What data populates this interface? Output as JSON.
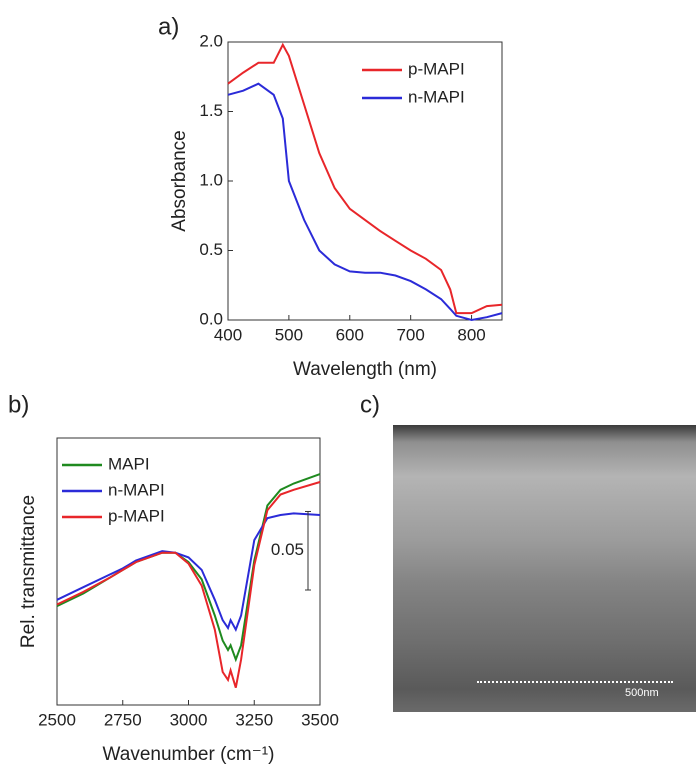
{
  "chart_data": [
    {
      "type": "line",
      "xlabel": "Wavelength (nm)",
      "ylabel": "Absorbance",
      "x": [
        400,
        425,
        450,
        475,
        490,
        500,
        525,
        550,
        575,
        600,
        625,
        650,
        675,
        700,
        725,
        750,
        765,
        775,
        800,
        825,
        850
      ],
      "series": [
        {
          "name": "p-MAPI",
          "color": "#e8262a",
          "values": [
            1.7,
            1.78,
            1.85,
            1.85,
            1.98,
            1.9,
            1.55,
            1.2,
            0.95,
            0.8,
            0.72,
            0.64,
            0.57,
            0.5,
            0.44,
            0.36,
            0.22,
            0.05,
            0.05,
            0.1,
            0.11
          ]
        },
        {
          "name": "n-MAPI",
          "color": "#2b2bd8",
          "values": [
            1.62,
            1.65,
            1.7,
            1.62,
            1.45,
            1.0,
            0.72,
            0.5,
            0.4,
            0.35,
            0.34,
            0.34,
            0.32,
            0.28,
            0.22,
            0.15,
            0.08,
            0.03,
            0.0,
            0.02,
            0.05
          ]
        }
      ],
      "xlim": [
        400,
        850
      ],
      "xticks": [
        400,
        500,
        600,
        700,
        800
      ],
      "ylim": [
        0,
        2
      ],
      "yticks": [
        {
          "value": 0,
          "label": "0.0"
        },
        {
          "value": 0.5,
          "label": "0.5"
        },
        {
          "value": 1,
          "label": "1.0"
        },
        {
          "value": 1.5,
          "label": "1.5"
        },
        {
          "value": 2,
          "label": "2.0"
        }
      ],
      "legend": "upper right"
    },
    {
      "type": "line",
      "xlabel": "Wavenumber (cm⁻¹)",
      "ylabel": "Rel. transmittance",
      "x": [
        2500,
        2600,
        2700,
        2750,
        2800,
        2900,
        2950,
        3000,
        3050,
        3100,
        3130,
        3150,
        3160,
        3180,
        3200,
        3250,
        3300,
        3350,
        3400,
        3500
      ],
      "series": [
        {
          "name": "MAPI",
          "color": "#1f8a1f",
          "values": [
            0.063,
            0.071,
            0.081,
            0.086,
            0.091,
            0.097,
            0.097,
            0.091,
            0.08,
            0.057,
            0.041,
            0.035,
            0.038,
            0.029,
            0.038,
            0.092,
            0.127,
            0.137,
            0.141,
            0.147
          ]
        },
        {
          "name": "n-MAPI",
          "color": "#2b2bd8",
          "values": [
            0.067,
            0.075,
            0.083,
            0.087,
            0.092,
            0.098,
            0.097,
            0.094,
            0.086,
            0.067,
            0.054,
            0.049,
            0.054,
            0.048,
            0.057,
            0.105,
            0.119,
            0.121,
            0.122,
            0.121
          ]
        },
        {
          "name": "p-MAPI",
          "color": "#e8262a",
          "values": [
            0.064,
            0.072,
            0.081,
            0.086,
            0.091,
            0.097,
            0.097,
            0.09,
            0.076,
            0.048,
            0.021,
            0.016,
            0.022,
            0.011,
            0.029,
            0.089,
            0.124,
            0.134,
            0.137,
            0.142
          ]
        }
      ],
      "xlim": [
        2500,
        3500
      ],
      "xticks": [
        2500,
        2750,
        3000,
        3250,
        3500
      ],
      "ylim": [
        0,
        0.17
      ],
      "scale_bar": 0.05,
      "legend": "upper left"
    }
  ],
  "panel_labels": [
    "a)",
    "b)",
    "c)"
  ],
  "image": {
    "scale_label": "500nm"
  }
}
